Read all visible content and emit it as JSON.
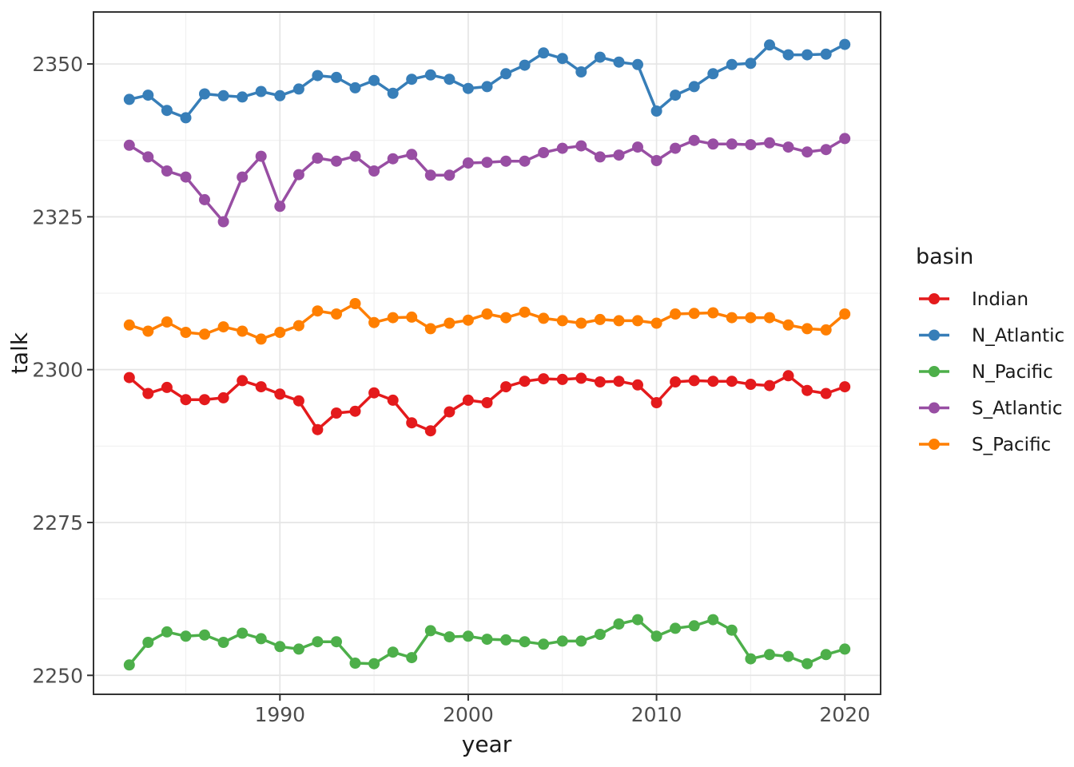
{
  "chart_data": {
    "type": "line",
    "title": "",
    "xlabel": "year",
    "ylabel": "talk",
    "legend_title": "basin",
    "legend_position": "right",
    "grid": true,
    "marker": "circle",
    "xlim": [
      1980.1,
      2021.9
    ],
    "ylim": [
      2246.9,
      2358.5
    ],
    "x_major_ticks": [
      1990,
      2000,
      2010,
      2020
    ],
    "x_minor_ticks": [
      1985,
      1995,
      2005,
      2015
    ],
    "y_major_ticks": [
      2250,
      2275,
      2300,
      2325,
      2350
    ],
    "y_minor_ticks": [
      2262.5,
      2287.5,
      2312.5,
      2337.5
    ],
    "x": [
      1982,
      1983,
      1984,
      1985,
      1986,
      1987,
      1988,
      1989,
      1990,
      1991,
      1992,
      1993,
      1994,
      1995,
      1996,
      1997,
      1998,
      1999,
      2000,
      2001,
      2002,
      2003,
      2004,
      2005,
      2006,
      2007,
      2008,
      2009,
      2010,
      2011,
      2012,
      2013,
      2014,
      2015,
      2016,
      2017,
      2018,
      2019,
      2020
    ],
    "series": [
      {
        "name": "Indian",
        "color": "#E41A1C",
        "values": [
          2298.7,
          2296.1,
          2297.1,
          2295.1,
          2295.1,
          2295.4,
          2298.2,
          2297.2,
          2296.0,
          2294.9,
          2290.2,
          2292.9,
          2293.2,
          2296.2,
          2295.0,
          2291.3,
          2290.0,
          2293.1,
          2295.0,
          2294.6,
          2297.2,
          2298.1,
          2298.5,
          2298.4,
          2298.6,
          2298.0,
          2298.1,
          2297.5,
          2294.6,
          2298.0,
          2298.2,
          2298.1,
          2298.1,
          2297.6,
          2297.4,
          2299.0,
          2296.6,
          2296.1,
          2297.2
        ]
      },
      {
        "name": "N_Atlantic",
        "color": "#377EB8",
        "values": [
          2344.2,
          2344.9,
          2342.4,
          2341.2,
          2345.1,
          2344.8,
          2344.6,
          2345.5,
          2344.8,
          2345.9,
          2348.1,
          2347.8,
          2346.1,
          2347.3,
          2345.2,
          2347.5,
          2348.2,
          2347.5,
          2346.0,
          2346.3,
          2348.4,
          2349.8,
          2351.8,
          2350.9,
          2348.7,
          2351.1,
          2350.3,
          2349.9,
          2342.3,
          2344.9,
          2346.3,
          2348.4,
          2349.9,
          2350.1,
          2353.1,
          2351.5,
          2351.5,
          2351.6,
          2353.2
        ]
      },
      {
        "name": "N_Pacific",
        "color": "#4DAF4A",
        "values": [
          2251.7,
          2255.4,
          2257.1,
          2256.4,
          2256.6,
          2255.4,
          2256.9,
          2256.0,
          2254.7,
          2254.3,
          2255.5,
          2255.5,
          2252.0,
          2251.9,
          2253.8,
          2252.9,
          2257.3,
          2256.3,
          2256.4,
          2255.9,
          2255.8,
          2255.5,
          2255.1,
          2255.6,
          2255.6,
          2256.7,
          2258.4,
          2259.1,
          2256.4,
          2257.7,
          2258.1,
          2259.1,
          2257.4,
          2252.7,
          2253.4,
          2253.1,
          2251.9,
          2253.4,
          2254.3
        ]
      },
      {
        "name": "S_Atlantic",
        "color": "#984EA3",
        "values": [
          2336.7,
          2334.8,
          2332.5,
          2331.5,
          2327.8,
          2324.2,
          2331.5,
          2334.9,
          2326.7,
          2331.9,
          2334.6,
          2334.1,
          2334.9,
          2332.5,
          2334.5,
          2335.2,
          2331.8,
          2331.8,
          2333.8,
          2333.9,
          2334.1,
          2334.1,
          2335.5,
          2336.2,
          2336.6,
          2334.8,
          2335.1,
          2336.4,
          2334.2,
          2336.2,
          2337.5,
          2336.9,
          2336.9,
          2336.8,
          2337.1,
          2336.4,
          2335.6,
          2336.0,
          2337.8
        ]
      },
      {
        "name": "S_Pacific",
        "color": "#FF7F00",
        "values": [
          2307.3,
          2306.3,
          2307.8,
          2306.1,
          2305.8,
          2307.0,
          2306.3,
          2305.0,
          2306.1,
          2307.2,
          2309.6,
          2309.1,
          2310.8,
          2307.7,
          2308.5,
          2308.6,
          2306.7,
          2307.6,
          2308.1,
          2309.1,
          2308.5,
          2309.4,
          2308.4,
          2308.0,
          2307.6,
          2308.2,
          2308.0,
          2308.0,
          2307.6,
          2309.1,
          2309.2,
          2309.3,
          2308.5,
          2308.5,
          2308.5,
          2307.3,
          2306.7,
          2306.5,
          2309.1
        ]
      }
    ]
  }
}
